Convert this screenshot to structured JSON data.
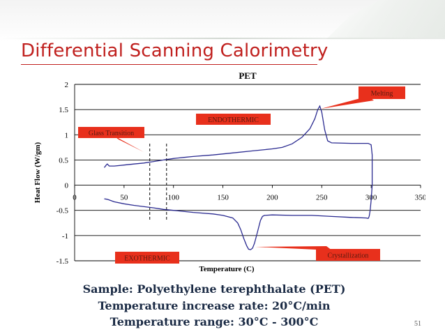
{
  "slide": {
    "title": "Differential Scanning Calorimetry",
    "captions": [
      "Sample: Polyethylene terephthalate (PET)",
      "Temperature increase rate: 20°C/min",
      "Temperature range: 30°C - 300°C"
    ],
    "page_number": "51"
  },
  "colors": {
    "title": "#c0201e",
    "caption": "#1a2a44",
    "curve": "#2a2a90",
    "callout_fill": "#e8301c",
    "callout_text": "#5a1a10"
  },
  "chart_data": {
    "type": "line",
    "title": "PET",
    "xlabel": "Temperature (C)",
    "ylabel": "Heat Flow (W/gm)",
    "xlim": [
      0,
      350
    ],
    "ylim": [
      -1.5,
      2
    ],
    "xticks": [
      0,
      50,
      100,
      150,
      200,
      250,
      300,
      350
    ],
    "yticks": [
      -1.5,
      -1,
      -0.5,
      0,
      0.5,
      1,
      1.5,
      2
    ],
    "grid": "horizontal",
    "series": [
      {
        "values_heating": [
          [
            30,
            0.35
          ],
          [
            32,
            0.4
          ],
          [
            33,
            0.42
          ],
          [
            35,
            0.38
          ],
          [
            40,
            0.38
          ],
          [
            50,
            0.4
          ],
          [
            60,
            0.42
          ],
          [
            70,
            0.44
          ],
          [
            80,
            0.47
          ],
          [
            90,
            0.5
          ],
          [
            100,
            0.53
          ],
          [
            110,
            0.55
          ],
          [
            120,
            0.57
          ],
          [
            140,
            0.6
          ],
          [
            160,
            0.64
          ],
          [
            180,
            0.68
          ],
          [
            200,
            0.72
          ],
          [
            210,
            0.75
          ],
          [
            220,
            0.82
          ],
          [
            230,
            0.95
          ],
          [
            238,
            1.12
          ],
          [
            243,
            1.32
          ],
          [
            246,
            1.5
          ],
          [
            248,
            1.57
          ],
          [
            250,
            1.45
          ],
          [
            253,
            1.1
          ],
          [
            256,
            0.88
          ],
          [
            260,
            0.84
          ],
          [
            280,
            0.83
          ],
          [
            297,
            0.83
          ],
          [
            300,
            0.8
          ],
          [
            301,
            0.6
          ],
          [
            301,
            0.3
          ],
          [
            301,
            0
          ],
          [
            300,
            -0.3
          ],
          [
            299,
            -0.5
          ],
          [
            298,
            -0.62
          ]
        ],
        "values_cooling": [
          [
            298,
            -0.62
          ],
          [
            297,
            -0.66
          ],
          [
            295,
            -0.65
          ],
          [
            280,
            -0.64
          ],
          [
            260,
            -0.62
          ],
          [
            240,
            -0.6
          ],
          [
            220,
            -0.6
          ],
          [
            200,
            -0.59
          ],
          [
            192,
            -0.6
          ],
          [
            190,
            -0.62
          ],
          [
            188,
            -0.7
          ],
          [
            186,
            -0.85
          ],
          [
            184,
            -1.0
          ],
          [
            182,
            -1.15
          ],
          [
            180,
            -1.25
          ],
          [
            178,
            -1.28
          ],
          [
            176,
            -1.27
          ],
          [
            174,
            -1.2
          ],
          [
            171,
            -1.05
          ],
          [
            168,
            -0.88
          ],
          [
            165,
            -0.75
          ],
          [
            160,
            -0.65
          ],
          [
            150,
            -0.6
          ],
          [
            140,
            -0.57
          ],
          [
            120,
            -0.54
          ],
          [
            100,
            -0.5
          ],
          [
            90,
            -0.48
          ],
          [
            80,
            -0.45
          ],
          [
            60,
            -0.4
          ],
          [
            50,
            -0.37
          ],
          [
            40,
            -0.33
          ],
          [
            33,
            -0.28
          ],
          [
            30,
            -0.27
          ]
        ]
      }
    ],
    "annotations": [
      {
        "text": "Melting",
        "points_to": [
          246,
          1.57
        ]
      },
      {
        "text": "ENDOTHERMIC"
      },
      {
        "text": "Glass Transition",
        "points_to": [
          73,
          0.62
        ]
      },
      {
        "text": "EXOTHERMIC"
      },
      {
        "text": "Crystallization",
        "points_to": [
          178,
          -1.28
        ]
      }
    ],
    "reference_lines_x": [
      76,
      93
    ]
  }
}
